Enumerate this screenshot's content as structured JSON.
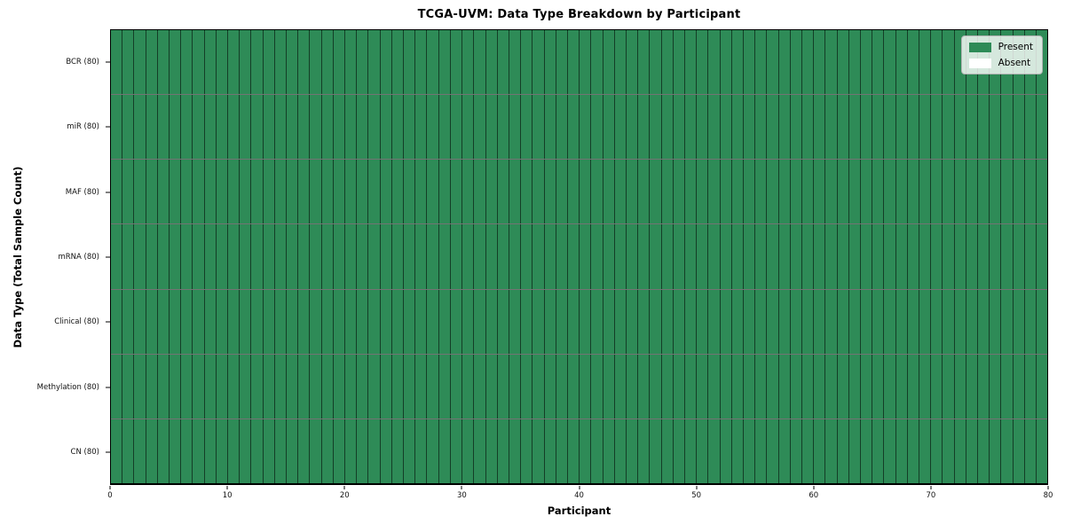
{
  "chart_data": {
    "type": "heatmap",
    "title": "TCGA-UVM: Data Type Breakdown by Participant",
    "xlabel": "Participant",
    "ylabel": "Data Type (Total Sample Count)",
    "xlim": [
      0,
      80
    ],
    "x_ticks": [
      0,
      10,
      20,
      30,
      40,
      50,
      60,
      70,
      80
    ],
    "n_participants": 80,
    "rows": [
      {
        "label": "BCR (80)",
        "data_type": "BCR",
        "total_samples": 80,
        "present_participants": 80,
        "absent_participants": 0
      },
      {
        "label": "miR (80)",
        "data_type": "miR",
        "total_samples": 80,
        "present_participants": 80,
        "absent_participants": 0
      },
      {
        "label": "MAF (80)",
        "data_type": "MAF",
        "total_samples": 80,
        "present_participants": 80,
        "absent_participants": 0
      },
      {
        "label": "mRNA (80)",
        "data_type": "mRNA",
        "total_samples": 80,
        "present_participants": 80,
        "absent_participants": 0
      },
      {
        "label": "Clinical (80)",
        "data_type": "Clinical",
        "total_samples": 80,
        "present_participants": 80,
        "absent_participants": 0
      },
      {
        "label": "Methylation (80)",
        "data_type": "Methylation",
        "total_samples": 80,
        "present_participants": 80,
        "absent_participants": 0
      },
      {
        "label": "CN (80)",
        "data_type": "CN",
        "total_samples": 80,
        "present_participants": 80,
        "absent_participants": 0
      }
    ],
    "legend": {
      "position": "upper right",
      "items": [
        {
          "label": "Present",
          "color": "#2e8b57"
        },
        {
          "label": "Absent",
          "color": "#ffffff"
        }
      ]
    },
    "colors": {
      "present": "#2e8b57",
      "absent": "#ffffff",
      "cell_edge": "rgba(0,0,0,0.55)",
      "spine": "#000000"
    },
    "grid": false
  }
}
